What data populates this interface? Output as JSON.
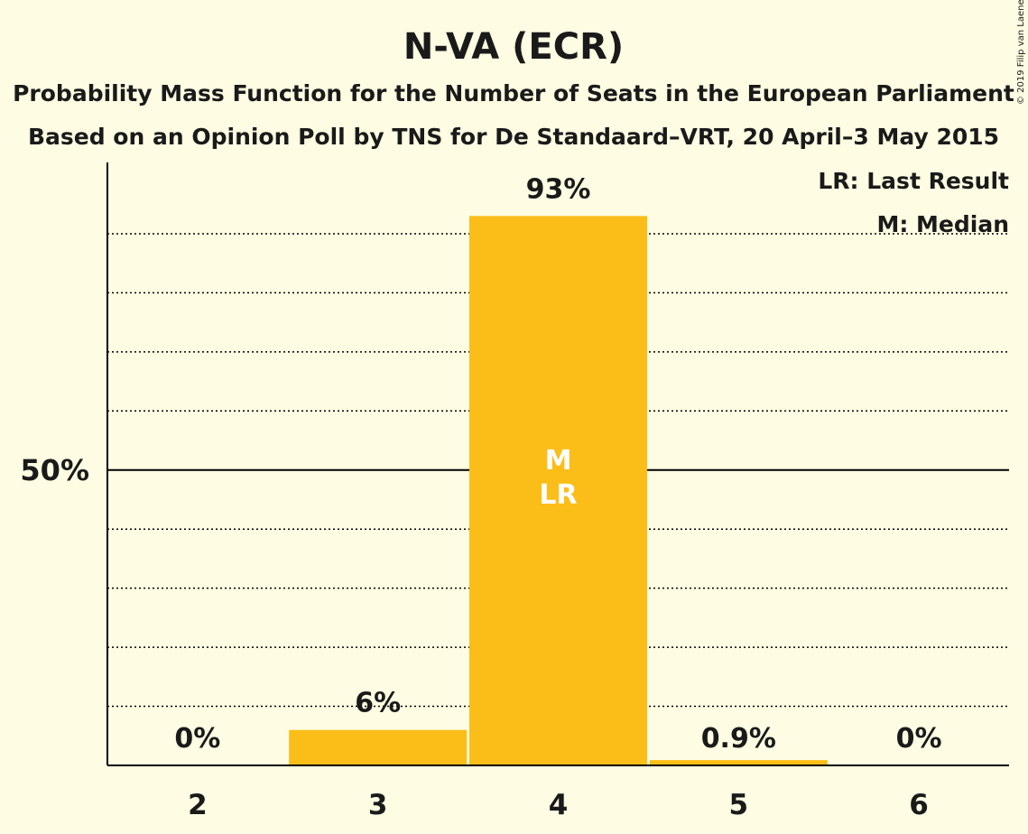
{
  "colors": {
    "background": "#fefce2",
    "bar": "#fbbd18",
    "axis": "#000000",
    "text": "#1a1a1a",
    "in_bar_text": "#ffffff"
  },
  "copyright": "© 2019 Filip van Laenen",
  "chart_data": {
    "type": "bar",
    "title": "N-VA (ECR)",
    "subtitle": "Probability Mass Function for the Number of Seats in the European Parliament",
    "subtitle2": "Based on an Opinion Poll by TNS for De Standaard–VRT, 20 April–3 May 2015",
    "categories": [
      "2",
      "3",
      "4",
      "5",
      "6"
    ],
    "values": [
      0,
      6,
      93,
      0.9,
      0
    ],
    "value_labels": [
      "0%",
      "6%",
      "93%",
      "0.9%",
      "0%"
    ],
    "in_bar_labels": [
      "",
      "",
      "M\nLR",
      "",
      ""
    ],
    "ylim": [
      0,
      100
    ],
    "yticks": [
      {
        "value": 50,
        "label": "50%"
      }
    ],
    "grid": "dotted every 10%",
    "legend": [
      "LR: Last Result",
      "M: Median"
    ],
    "legend_position": "top-right"
  }
}
